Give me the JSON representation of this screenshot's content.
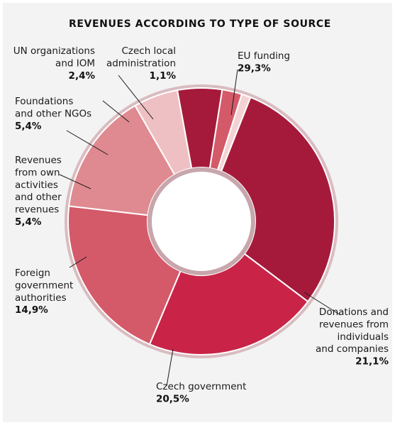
{
  "chart_data": {
    "type": "pie",
    "variant": "donut",
    "title": "REVENUES ACCORDING TO TYPE OF SOURCE",
    "slices": [
      {
        "label_lines": [
          "EU funding"
        ],
        "value_label": "29,3%",
        "value": 29.3,
        "color": "#a51a3a"
      },
      {
        "label_lines": [
          "Donations and",
          "revenues from",
          "individuals",
          "and companies"
        ],
        "value_label": "21,1%",
        "value": 21.1,
        "color": "#c92448"
      },
      {
        "label_lines": [
          "Czech government"
        ],
        "value_label": "20,5%",
        "value": 20.5,
        "color": "#d45a69"
      },
      {
        "label_lines": [
          "Foreign",
          "government",
          "authorities"
        ],
        "value_label": "14,9%",
        "value": 14.9,
        "color": "#df8a90"
      },
      {
        "label_lines": [
          "Revenues",
          "from own",
          "activities",
          "and other",
          "revenues"
        ],
        "value_label": "5,4%",
        "value": 5.4,
        "color": "#efc0c3"
      },
      {
        "label_lines": [
          "Foundations",
          "and other NGOs"
        ],
        "value_label": "5,4%",
        "value": 5.4,
        "color": "#a51a3a"
      },
      {
        "label_lines": [
          "UN organizations",
          "and IOM"
        ],
        "value_label": "2,4%",
        "value": 2.4,
        "color": "#d45a69"
      },
      {
        "label_lines": [
          "Czech local",
          "administration"
        ],
        "value_label": "1,1%",
        "value": 1.1,
        "color": "#f3d2d4"
      }
    ]
  }
}
